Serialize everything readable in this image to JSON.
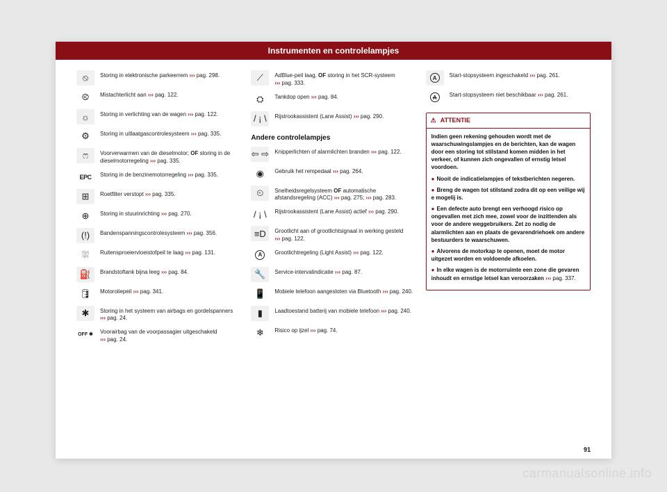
{
  "header": {
    "title": "Instrumenten en controlelampjes"
  },
  "page_number": "91",
  "watermark": "carmanualsonline.info",
  "ref_prefix": "›››",
  "col1": [
    {
      "icon": "⦸",
      "text": "Storing in elektronische parkeerrem",
      "ref": "pag. 298."
    },
    {
      "icon": "⧀",
      "text": "Mistachterlicht aan",
      "ref": "pag. 122."
    },
    {
      "icon": "☼",
      "text": "Storing in verlichting van de wagen",
      "ref": "pag. 122."
    },
    {
      "icon": "⚙",
      "text": "Storing in uitlaatgascontrolesysteem",
      "ref": "pag. 335."
    },
    {
      "icon": "ෆ",
      "text": "Voorverwarmen van de dieselmotor;",
      "bold_after": "OF",
      "text2": "storing in de dieselmotorregeling",
      "ref": "pag. 335."
    },
    {
      "icon_label": "EPC",
      "text": "Storing in de benzinemotorregeling",
      "ref": "pag. 335."
    },
    {
      "icon": "⊞",
      "text": "Roetfilter verstopt",
      "ref": "pag. 335."
    },
    {
      "icon": "⊕",
      "text": "Storing in stuurinrichting",
      "ref": "pag. 270."
    },
    {
      "icon": "(!)",
      "text": "Bandenspanningscontrolesysteem",
      "ref": "pag. 356."
    },
    {
      "icon": "⛆",
      "text": "Ruitensproeiervloeistofpeil te laag",
      "ref": "pag. 131."
    },
    {
      "icon": "⛽",
      "text": "Brandstoftank bijna leeg",
      "ref": "pag. 84."
    },
    {
      "icon": "🛢",
      "text": "Motoroliepeil",
      "ref": "pag. 341."
    },
    {
      "icon": "✱",
      "text": "Storing in het systeem van airbags en gordelspanners",
      "ref": "pag. 24."
    },
    {
      "icon_off": "OFF ✱",
      "text": "Voorairbag van de voorpassagier uitgeschakeld",
      "ref": "pag. 24."
    }
  ],
  "col2_top": [
    {
      "icon": "⟋",
      "text": "AdBlue-peil laag,",
      "bold_after": "OF",
      "text2": "storing in het SCR-systeem",
      "ref": "pag. 333."
    },
    {
      "icon": "⛭",
      "text": "Tankdop open",
      "ref": "pag. 84."
    },
    {
      "icon": "/ ¡ \\",
      "text": "Rijstrookassistent (Lane Assist)",
      "ref": "pag. 290."
    }
  ],
  "col2_heading": "Andere controlelampjes",
  "col2_bottom": [
    {
      "icon": "⇦ ⇨",
      "text": "Knipperlichten of alarmlichten branden",
      "ref": "pag. 122."
    },
    {
      "icon": "◉",
      "text": "Gebruik het rempedaal",
      "ref": "pag. 264."
    },
    {
      "icon": "⏲",
      "text": "Snelheidsregelsysteem",
      "ref": "pag. 275;",
      "bold_after": "OF",
      "text2": "automatische afstandsregeling (ACC)",
      "ref2": "pag. 283."
    },
    {
      "icon": "/ ¡ \\",
      "text": "Rijstrookassistent (Lane Assist) actief",
      "ref": "pag. 290."
    },
    {
      "icon": "≡D",
      "text": "Grootlicht aan of grootlichtsignaal in werking gesteld",
      "ref": "pag. 122."
    },
    {
      "icon_circled": "A",
      "sup": "≡",
      "text": "Grootlichtregeling (Light Assist)",
      "ref": "pag. 122."
    },
    {
      "icon": "🔧",
      "text": "Service-intervalindicatie",
      "ref": "pag. 87."
    },
    {
      "icon": "📱",
      "text": "Mobiele telefoon aangesloten via Bluetooth",
      "ref": "pag. 240."
    },
    {
      "icon": "▮",
      "text": "Laadtoestand batterij van mobiele telefoon",
      "ref": "pag. 240."
    },
    {
      "icon": "❄",
      "text": "Risico op ijzel",
      "ref": "pag. 74."
    }
  ],
  "col3_top": [
    {
      "icon_circled": "A",
      "text": "Start-stopsysteem ingeschakeld",
      "ref": "pag. 261."
    },
    {
      "icon_circled": "A",
      "strike": true,
      "text": "Start-stopsysteem niet beschikbaar",
      "ref": "pag. 261."
    }
  ],
  "attention": {
    "title": "ATTENTIE",
    "intro": "Indien geen rekening gehouden wordt met de waarschuwingslampjes en de berichten, kan de wagen door een storing tot stilstand komen midden in het verkeer, of kunnen zich ongevallen of ernstig letsel voordoen.",
    "bullets": [
      "Nooit de indicatielampjes of tekstberichten negeren.",
      "Breng de wagen tot stilstand zodra dit op een veilige wij e mogelij  is.",
      "Een defecte auto brengt een verhoogd risico op ongevallen met zich mee, zowel voor de inzittenden als voor de andere weggebruikers. Zet zo nodig de alarmlichten aan en plaats de gevarendriehoek om andere bestuurders te waarschuwen.",
      "Alvorens de motorkap te openen, moet de motor uitgezet worden en voldoende afkoelen.",
      "In elke wagen is de motorruimte een zone die gevaren inhoudt en ernstige letsel kan veroorzaken"
    ],
    "final_ref": "pag. 337."
  }
}
